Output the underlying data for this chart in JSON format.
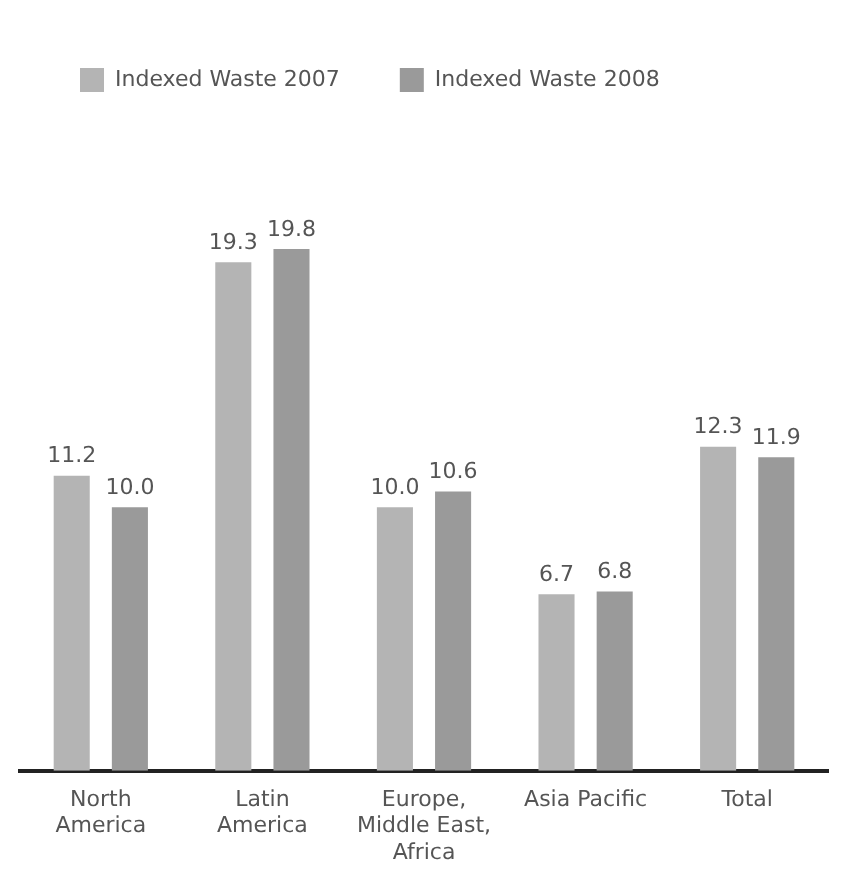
{
  "chart_data": {
    "type": "bar",
    "categories": [
      "North America",
      "Latin America",
      "Europe, Middle East, Africa",
      "Asia Pacific",
      "Total"
    ],
    "series": [
      {
        "name": "Indexed Waste 2007",
        "color": "#b4b4b4",
        "values": [
          11.2,
          19.3,
          10.0,
          6.7,
          12.3
        ],
        "value_labels": [
          "11.2",
          "19.3",
          "10.0",
          "6.7",
          "12.3"
        ]
      },
      {
        "name": "Indexed Waste 2008",
        "color": "#9a9a9a",
        "values": [
          10.0,
          19.8,
          10.6,
          6.8,
          11.9
        ],
        "value_labels": [
          "10.0",
          "19.8",
          "10.6",
          "6.8",
          "11.9"
        ]
      }
    ],
    "legend": "top left",
    "grid": false
  }
}
